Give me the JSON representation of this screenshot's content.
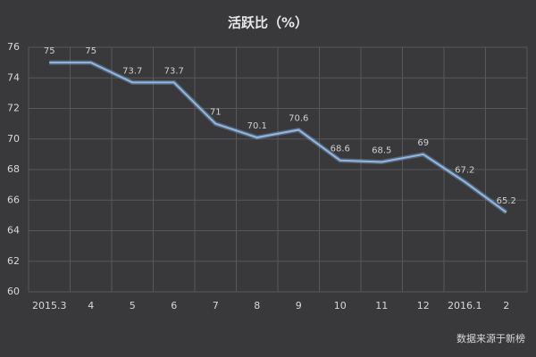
{
  "chart_data": {
    "type": "line",
    "title": "活跃比（%）",
    "categories": [
      "2015.3",
      "4",
      "5",
      "6",
      "7",
      "8",
      "9",
      "10",
      "11",
      "12",
      "2016.1",
      "2"
    ],
    "values": [
      75,
      75,
      73.7,
      73.7,
      71,
      70.1,
      70.6,
      68.6,
      68.5,
      69,
      67.2,
      65.2
    ],
    "color": "#8fb8e6",
    "ylim": [
      60,
      76
    ],
    "yticks": [
      60,
      62,
      64,
      66,
      68,
      70,
      72,
      74,
      76
    ],
    "grid": true,
    "source": "数据来源于新榜"
  }
}
